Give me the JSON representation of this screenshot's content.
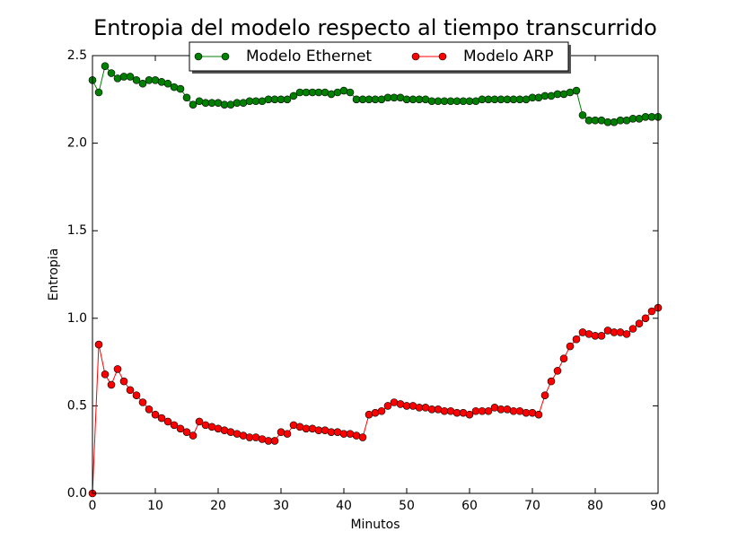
{
  "chart_data": {
    "type": "line",
    "title": "Entropia del modelo respecto al tiempo transcurrido",
    "xlabel": "Minutos",
    "ylabel": "Entropia",
    "x": [
      0,
      1,
      2,
      3,
      4,
      5,
      6,
      7,
      8,
      9,
      10,
      11,
      12,
      13,
      14,
      15,
      16,
      17,
      18,
      19,
      20,
      21,
      22,
      23,
      24,
      25,
      26,
      27,
      28,
      29,
      30,
      31,
      32,
      33,
      34,
      35,
      36,
      37,
      38,
      39,
      40,
      41,
      42,
      43,
      44,
      45,
      46,
      47,
      48,
      49,
      50,
      51,
      52,
      53,
      54,
      55,
      56,
      57,
      58,
      59,
      60,
      61,
      62,
      63,
      64,
      65,
      66,
      67,
      68,
      69,
      70,
      71,
      72,
      73,
      74,
      75,
      76,
      77,
      78,
      79,
      80,
      81,
      82,
      83,
      84,
      85,
      86,
      87,
      88,
      89,
      90
    ],
    "series": [
      {
        "name": "Modelo Ethernet",
        "color": "#008000",
        "values": [
          2.36,
          2.29,
          2.44,
          2.4,
          2.37,
          2.38,
          2.38,
          2.36,
          2.34,
          2.36,
          2.36,
          2.35,
          2.34,
          2.32,
          2.31,
          2.26,
          2.22,
          2.24,
          2.23,
          2.23,
          2.23,
          2.22,
          2.22,
          2.23,
          2.23,
          2.24,
          2.24,
          2.24,
          2.25,
          2.25,
          2.25,
          2.25,
          2.27,
          2.29,
          2.29,
          2.29,
          2.29,
          2.29,
          2.28,
          2.29,
          2.3,
          2.29,
          2.25,
          2.25,
          2.25,
          2.25,
          2.25,
          2.26,
          2.26,
          2.26,
          2.25,
          2.25,
          2.25,
          2.25,
          2.24,
          2.24,
          2.24,
          2.24,
          2.24,
          2.24,
          2.24,
          2.24,
          2.25,
          2.25,
          2.25,
          2.25,
          2.25,
          2.25,
          2.25,
          2.25,
          2.26,
          2.26,
          2.27,
          2.27,
          2.28,
          2.28,
          2.29,
          2.3,
          2.16,
          2.13,
          2.13,
          2.13,
          2.12,
          2.12,
          2.13,
          2.13,
          2.14,
          2.14,
          2.15,
          2.15,
          2.15
        ]
      },
      {
        "name": "Modelo ARP",
        "color": "#ff0000",
        "values": [
          0.0,
          0.85,
          0.68,
          0.62,
          0.71,
          0.64,
          0.59,
          0.56,
          0.52,
          0.48,
          0.45,
          0.43,
          0.41,
          0.39,
          0.37,
          0.35,
          0.33,
          0.41,
          0.39,
          0.38,
          0.37,
          0.36,
          0.35,
          0.34,
          0.33,
          0.32,
          0.32,
          0.31,
          0.3,
          0.3,
          0.35,
          0.34,
          0.39,
          0.38,
          0.37,
          0.37,
          0.36,
          0.36,
          0.35,
          0.35,
          0.34,
          0.34,
          0.33,
          0.32,
          0.45,
          0.46,
          0.47,
          0.5,
          0.52,
          0.51,
          0.5,
          0.5,
          0.49,
          0.49,
          0.48,
          0.48,
          0.47,
          0.47,
          0.46,
          0.46,
          0.45,
          0.47,
          0.47,
          0.47,
          0.49,
          0.48,
          0.48,
          0.47,
          0.47,
          0.46,
          0.46,
          0.45,
          0.56,
          0.64,
          0.7,
          0.77,
          0.84,
          0.88,
          0.92,
          0.91,
          0.9,
          0.9,
          0.93,
          0.92,
          0.92,
          0.91,
          0.94,
          0.97,
          1.0,
          1.04,
          1.06
        ]
      }
    ],
    "xlim": [
      0,
      90
    ],
    "xticks": [
      0,
      10,
      20,
      30,
      40,
      50,
      60,
      70,
      80,
      90
    ],
    "ylim": [
      0,
      2.5
    ],
    "yticks": [
      {
        "value": 0,
        "label": "0.0"
      },
      0.5,
      {
        "value": 1,
        "label": "1.0"
      },
      1.5,
      {
        "value": 2,
        "label": "2.0"
      },
      2.5
    ],
    "grid": false,
    "legend": "upper center"
  }
}
